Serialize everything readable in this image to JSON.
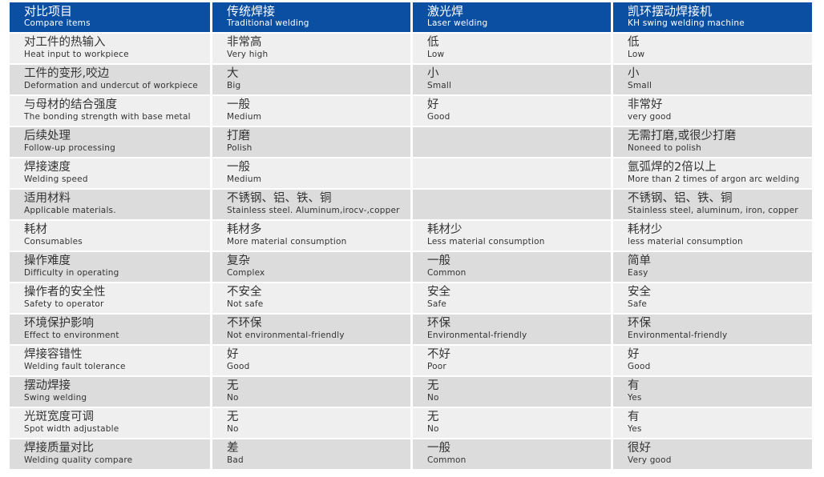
{
  "header": [
    {
      "zh": "对比项目",
      "en": "Compare items"
    },
    {
      "zh": "传统焊接",
      "en": "Traditional welding"
    },
    {
      "zh": "激光焊",
      "en": "Laser welding"
    },
    {
      "zh": "凯环摆动焊接机",
      "en": "KH swing welding machine"
    }
  ],
  "rows": [
    [
      {
        "zh": "对工件的热输入",
        "en": "Heat input to workpiece"
      },
      {
        "zh": "非常高",
        "en": "Very high"
      },
      {
        "zh": "低",
        "en": "Low"
      },
      {
        "zh": "低",
        "en": "Low"
      }
    ],
    [
      {
        "zh": "工件的变形,咬边",
        "en": "Deformation and undercut of workpiece"
      },
      {
        "zh": "大",
        "en": "Big"
      },
      {
        "zh": "小",
        "en": "Small"
      },
      {
        "zh": "小",
        "en": "Small"
      }
    ],
    [
      {
        "zh": "与母材的结合强度",
        "en": "The bonding strength with base metal"
      },
      {
        "zh": "一般",
        "en": "Medium"
      },
      {
        "zh": "好",
        "en": "Good"
      },
      {
        "zh": "非常好",
        "en": "very good"
      }
    ],
    [
      {
        "zh": "后续处理",
        "en": "Follow-up processing"
      },
      {
        "zh": "打磨",
        "en": "Polish"
      },
      {
        "zh": "",
        "en": ""
      },
      {
        "zh": "无需打磨,或很少打磨",
        "en": "Noneed to polish"
      }
    ],
    [
      {
        "zh": "焊接速度",
        "en": "Welding speed"
      },
      {
        "zh": "一般",
        "en": "Medium"
      },
      {
        "zh": "",
        "en": ""
      },
      {
        "zh": "氩弧焊的2倍以上",
        "en": "More than 2 times of argon arc welding"
      }
    ],
    [
      {
        "zh": "适用材料",
        "en": "Applicable materials."
      },
      {
        "zh": "不锈钢、铝、铁、铜",
        "en": "Stainless steel. Aluminum,irocv-,copper"
      },
      {
        "zh": "",
        "en": ""
      },
      {
        "zh": "不锈钢、铝、铁、铜",
        "en": "Stainless steel, aluminum, iron, copper"
      }
    ],
    [
      {
        "zh": "耗材",
        "en": "Consumables"
      },
      {
        "zh": "耗材多",
        "en": "More material consumption"
      },
      {
        "zh": "耗材少",
        "en": "Less material consumption"
      },
      {
        "zh": "耗材少",
        "en": "less material consumption"
      }
    ],
    [
      {
        "zh": "操作难度",
        "en": "Difficulty in operating"
      },
      {
        "zh": "复杂",
        "en": "Complex"
      },
      {
        "zh": "一般",
        "en": "Common"
      },
      {
        "zh": "简单",
        "en": "Easy"
      }
    ],
    [
      {
        "zh": "操作者的安全性",
        "en": "Safety to operator"
      },
      {
        "zh": "不安全",
        "en": "Not safe"
      },
      {
        "zh": "安全",
        "en": "Safe"
      },
      {
        "zh": "安全",
        "en": "Safe"
      }
    ],
    [
      {
        "zh": "环境保护影响",
        "en": "Effect to environment"
      },
      {
        "zh": "不环保",
        "en": "Not environmental-friendly"
      },
      {
        "zh": "环保",
        "en": "Environmental-friendly"
      },
      {
        "zh": "环保",
        "en": "Environmental-friendly"
      }
    ],
    [
      {
        "zh": "焊接容错性",
        "en": "Welding fault tolerance"
      },
      {
        "zh": "好",
        "en": "Good"
      },
      {
        "zh": "不好",
        "en": "Poor"
      },
      {
        "zh": "好",
        "en": "Good"
      }
    ],
    [
      {
        "zh": "摆动焊接",
        "en": "Swing welding"
      },
      {
        "zh": "无",
        "en": "No"
      },
      {
        "zh": "无",
        "en": "No"
      },
      {
        "zh": "有",
        "en": "Yes"
      }
    ],
    [
      {
        "zh": "光斑宽度可调",
        "en": "Spot width adjustable"
      },
      {
        "zh": "无",
        "en": "No"
      },
      {
        "zh": "无",
        "en": "No"
      },
      {
        "zh": "有",
        "en": "Yes"
      }
    ],
    [
      {
        "zh": "焊接质量对比",
        "en": "Welding quality compare"
      },
      {
        "zh": "差",
        "en": "Bad"
      },
      {
        "zh": "一般",
        "en": "Common"
      },
      {
        "zh": "很好",
        "en": "Very good"
      }
    ]
  ],
  "colors": {
    "header_bg": "#0b4fa3",
    "row_light": "#efefef",
    "row_dark": "#dcdcdc",
    "text": "#333333"
  }
}
